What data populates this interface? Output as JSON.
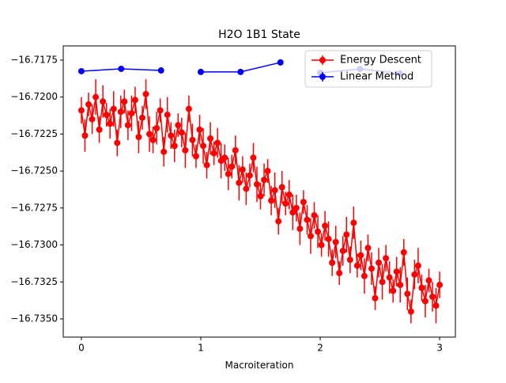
{
  "chart_data": {
    "type": "errorbar-line",
    "title": "H2O 1B1 State",
    "x_label": "Macroiteration",
    "xlim": [
      -0.152,
      3.132
    ],
    "ylim": [
      -16.73623,
      -16.71654
    ],
    "xticks": [
      0,
      1,
      2,
      3
    ],
    "yticks": [
      {
        "value": -16.7175,
        "label": "−16.7175"
      },
      {
        "value": -16.72,
        "label": "−16.7200"
      },
      {
        "value": -16.7225,
        "label": "−16.7225"
      },
      {
        "value": -16.725,
        "label": "−16.7250"
      },
      {
        "value": -16.7275,
        "label": "−16.7275"
      },
      {
        "value": -16.73,
        "label": "−16.7300"
      },
      {
        "value": -16.7325,
        "label": "−16.7325"
      },
      {
        "value": -16.735,
        "label": "−16.7350"
      }
    ],
    "legend": "upper right",
    "series": [
      {
        "name": "Energy Descent",
        "color": "#ff0000",
        "x": [
          0,
          0.03,
          0.06,
          0.09,
          0.12,
          0.15,
          0.18,
          0.21,
          0.24,
          0.27,
          0.3,
          0.33,
          0.36,
          0.39,
          0.42,
          0.45,
          0.48,
          0.51,
          0.54,
          0.57,
          0.6,
          0.63,
          0.66,
          0.69,
          0.72,
          0.75,
          0.78,
          0.81,
          0.84,
          0.87,
          0.9,
          0.93,
          0.96,
          0.99,
          1.02,
          1.05,
          1.08,
          1.11,
          1.14,
          1.17,
          1.2,
          1.23,
          1.26,
          1.29,
          1.32,
          1.35,
          1.38,
          1.41,
          1.44,
          1.47,
          1.5,
          1.53,
          1.56,
          1.59,
          1.62,
          1.65,
          1.68,
          1.71,
          1.74,
          1.77,
          1.8,
          1.83,
          1.86,
          1.89,
          1.92,
          1.95,
          1.98,
          2.01,
          2.04,
          2.07,
          2.1,
          2.13,
          2.16,
          2.19,
          2.22,
          2.25,
          2.28,
          2.31,
          2.34,
          2.37,
          2.4,
          2.43,
          2.46,
          2.49,
          2.52,
          2.55,
          2.58,
          2.61,
          2.64,
          2.67,
          2.7,
          2.73,
          2.76,
          2.79,
          2.82,
          2.85,
          2.88,
          2.91,
          2.94,
          2.97,
          3.0
        ],
        "values": [
          -16.7209,
          -16.7226,
          -16.7205,
          -16.7215,
          -16.72,
          -16.7222,
          -16.7203,
          -16.7212,
          -16.7218,
          -16.7208,
          -16.7231,
          -16.721,
          -16.7203,
          -16.7219,
          -16.7211,
          -16.7202,
          -16.7227,
          -16.7214,
          -16.7198,
          -16.7225,
          -16.7229,
          -16.7221,
          -16.7209,
          -16.7237,
          -16.7212,
          -16.7226,
          -16.7233,
          -16.7219,
          -16.7224,
          -16.7236,
          -16.7208,
          -16.7229,
          -16.724,
          -16.7222,
          -16.7233,
          -16.7246,
          -16.7228,
          -16.7238,
          -16.7231,
          -16.7243,
          -16.7241,
          -16.7252,
          -16.7247,
          -16.7236,
          -16.7258,
          -16.7249,
          -16.7262,
          -16.7253,
          -16.7241,
          -16.7259,
          -16.7267,
          -16.7256,
          -16.725,
          -16.727,
          -16.7263,
          -16.7284,
          -16.7261,
          -16.7272,
          -16.7266,
          -16.7278,
          -16.7275,
          -16.7289,
          -16.7271,
          -16.7283,
          -16.7294,
          -16.728,
          -16.7291,
          -16.73,
          -16.7287,
          -16.7296,
          -16.7312,
          -16.7298,
          -16.7319,
          -16.7304,
          -16.7293,
          -16.731,
          -16.7285,
          -16.7314,
          -16.7307,
          -16.7321,
          -16.7302,
          -16.7316,
          -16.7336,
          -16.7312,
          -16.7325,
          -16.7309,
          -16.7322,
          -16.7331,
          -16.7318,
          -16.7327,
          -16.7305,
          -16.7333,
          -16.7345,
          -16.732,
          -16.7314,
          -16.7329,
          -16.7338,
          -16.7324,
          -16.7335,
          -16.7341,
          -16.7327
        ],
        "errors": [
          0.0009,
          0.0011,
          0.0008,
          0.001,
          0.0012,
          0.0009,
          0.0011,
          0.0008,
          0.001,
          0.0012,
          0.0009,
          0.0011,
          0.0008,
          0.001,
          0.0012,
          0.0009,
          0.0011,
          0.0008,
          0.001,
          0.0012,
          0.0009,
          0.0011,
          0.0008,
          0.001,
          0.0012,
          0.0009,
          0.0011,
          0.0008,
          0.001,
          0.0012,
          0.0009,
          0.0011,
          0.0008,
          0.001,
          0.0012,
          0.0009,
          0.0011,
          0.0008,
          0.001,
          0.0012,
          0.0009,
          0.0011,
          0.0008,
          0.001,
          0.0012,
          0.0009,
          0.0011,
          0.0008,
          0.001,
          0.0012,
          0.0009,
          0.0011,
          0.0008,
          0.001,
          0.0012,
          0.0009,
          0.0011,
          0.0008,
          0.001,
          0.0012,
          0.0009,
          0.0011,
          0.0008,
          0.001,
          0.0012,
          0.0009,
          0.0011,
          0.0008,
          0.001,
          0.0012,
          0.0009,
          0.0011,
          0.0008,
          0.001,
          0.0012,
          0.0009,
          0.0011,
          0.0008,
          0.001,
          0.0012,
          0.0009,
          0.0011,
          0.0008,
          0.001,
          0.0012,
          0.0009,
          0.0011,
          0.0008,
          0.001,
          0.0012,
          0.0009,
          0.0011,
          0.0008,
          0.001,
          0.0012,
          0.0009,
          0.0011,
          0.0008,
          0.001,
          0.0012,
          0.0009
        ]
      },
      {
        "name": "Linear Method",
        "color": "#0000ff",
        "x": [
          0,
          0.333,
          0.667,
          null,
          1,
          1.333,
          1.667,
          null,
          2,
          2.333,
          2.667
        ],
        "values": [
          -16.71825,
          -16.71809,
          -16.7182,
          null,
          -16.7183,
          -16.7183,
          -16.71766,
          null,
          -16.71836,
          -16.7181,
          -16.7184
        ],
        "errors": [
          0.0001,
          0.0001,
          0.0001,
          null,
          0.0001,
          0.0001,
          0.0001,
          null,
          0.0001,
          0.0001,
          0.0001
        ]
      }
    ]
  }
}
